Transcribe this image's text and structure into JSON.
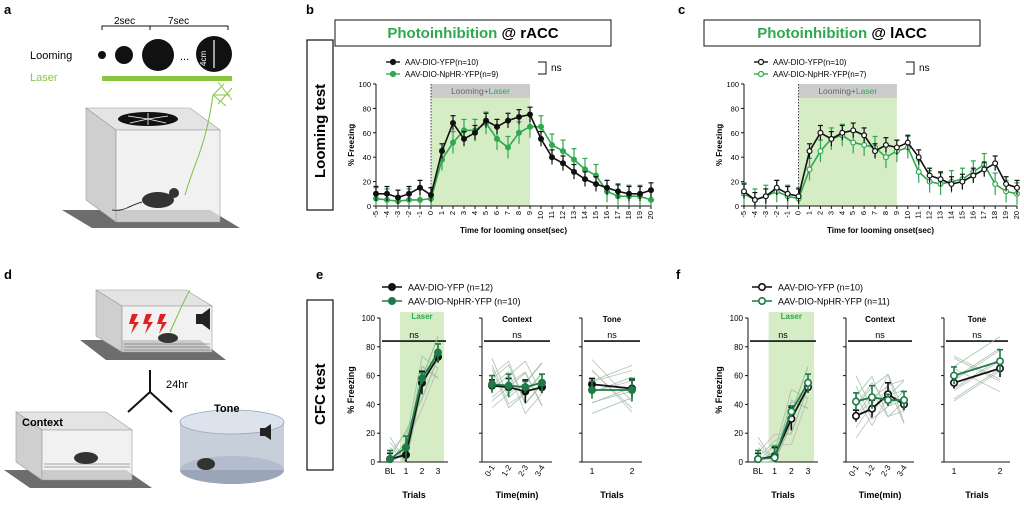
{
  "panels": {
    "a": "a",
    "b": "b",
    "c": "c",
    "d": "d",
    "e": "e",
    "f": "f"
  },
  "schematic_a": {
    "looming_label": "Looming",
    "interval_1": "2sec",
    "interval_2": "7sec",
    "size_label": "4cm",
    "laser_label": "Laser",
    "ellipsis": "...",
    "colors": {
      "laser": "#8cc63f",
      "mouse": "#333333",
      "box": "#d9d9d9"
    }
  },
  "schematic_d": {
    "delay_label": "24hr",
    "context_label": "Context",
    "tone_label": "Tone"
  },
  "row_labels": {
    "looming": "Looming test",
    "cfc": "CFC test"
  },
  "titles": {
    "b": {
      "part1": "Photoinhibition",
      "part2": " @ rACC"
    },
    "c": {
      "part1": "Photoinhibition",
      "part2": " @ lACC"
    }
  },
  "colors": {
    "green": "#2fa84f",
    "dark_green": "#1e7a46",
    "black": "#111111",
    "laser_shade": "#d6ecc4",
    "laser_bar_grey": "#cccccc"
  },
  "chart_data": [
    {
      "id": "b",
      "type": "line",
      "xlabel": "Time for looming onset(sec)",
      "ylabel": "% Freezing",
      "ylim": [
        0,
        100
      ],
      "xlim": [
        -5,
        20
      ],
      "y_ticks": [
        0,
        20,
        40,
        60,
        80,
        100
      ],
      "x_ticks": [
        -5,
        -4,
        -3,
        -2,
        -1,
        0,
        1,
        2,
        3,
        4,
        5,
        6,
        7,
        8,
        9,
        10,
        11,
        12,
        13,
        14,
        15,
        16,
        17,
        18,
        19,
        20
      ],
      "shade": {
        "start": 0,
        "end": 9,
        "label_a": "Looming",
        "label_plus": "+",
        "label_b": "Laser"
      },
      "legend_position": "top-left",
      "significance": "ns",
      "series": [
        {
          "name": "AAV-DIO-YFP(n=10)",
          "marker": "filled-circle",
          "color": "#111111",
          "values": [
            10,
            10,
            7,
            10,
            15,
            9,
            45,
            68,
            55,
            60,
            70,
            65,
            70,
            73,
            75,
            55,
            40,
            35,
            28,
            22,
            18,
            15,
            12,
            10,
            10,
            13
          ]
        },
        {
          "name": "AAV-DIO-NpHR-YFP(n=9)",
          "marker": "filled-circle",
          "color": "#2fa84f",
          "values": [
            6,
            5,
            4,
            5,
            5,
            6,
            38,
            52,
            62,
            62,
            68,
            55,
            48,
            60,
            65,
            65,
            50,
            45,
            38,
            30,
            25,
            12,
            8,
            8,
            8,
            5
          ]
        }
      ]
    },
    {
      "id": "c",
      "type": "line",
      "xlabel": "Time for looming onset(sec)",
      "ylabel": "% Freezing",
      "ylim": [
        0,
        100
      ],
      "xlim": [
        -5,
        20
      ],
      "y_ticks": [
        0,
        20,
        40,
        60,
        80,
        100
      ],
      "x_ticks": [
        -5,
        -4,
        -3,
        -2,
        -1,
        0,
        1,
        2,
        3,
        4,
        5,
        6,
        7,
        8,
        9,
        10,
        11,
        12,
        13,
        14,
        15,
        16,
        17,
        18,
        19,
        20
      ],
      "shade": {
        "start": 0,
        "end": 9,
        "label_a": "Looming",
        "label_plus": "+",
        "label_b": "Laser"
      },
      "legend_position": "top-left",
      "significance": "ns",
      "series": [
        {
          "name": "AAV-DIO-YFP(n=10)",
          "marker": "open-circle",
          "color": "#111111",
          "values": [
            12,
            5,
            8,
            15,
            10,
            8,
            45,
            60,
            55,
            60,
            62,
            58,
            45,
            50,
            48,
            52,
            40,
            25,
            22,
            18,
            20,
            25,
            30,
            35,
            18,
            15
          ]
        },
        {
          "name": "AAV-DIO-NpHR-YFP(n=7)",
          "marker": "open-circle",
          "color": "#2fa84f",
          "values": [
            10,
            5,
            8,
            12,
            8,
            6,
            30,
            45,
            55,
            58,
            52,
            50,
            48,
            40,
            45,
            48,
            28,
            20,
            18,
            20,
            22,
            28,
            34,
            18,
            12,
            10
          ]
        }
      ]
    },
    {
      "id": "e",
      "type": "line",
      "legend_position": "top",
      "series_names": [
        "AAV-DIO-YFP (n=12)",
        "AAV-DIO-NpHR-YFP (n=10)"
      ],
      "ylabel": "% Freezing",
      "ylim": [
        0,
        100
      ],
      "y_ticks": [
        0,
        20,
        40,
        60,
        80,
        100
      ],
      "subplots": [
        {
          "name": "trials",
          "title": "",
          "xlabel": "Trials",
          "categories": [
            "BL",
            "1",
            "2",
            "3"
          ],
          "shade": {
            "from": "1",
            "to": "3",
            "label": "Laser"
          },
          "significance": "ns",
          "series": [
            {
              "values": [
                2,
                5,
                55,
                73
              ]
            },
            {
              "values": [
                2,
                10,
                58,
                76
              ]
            }
          ]
        },
        {
          "name": "context",
          "title": "Context",
          "xlabel": "Time(min)",
          "categories": [
            "0-1",
            "1-2",
            "2-3",
            "3-4"
          ],
          "significance": "ns",
          "series": [
            {
              "values": [
                53,
                52,
                49,
                52
              ]
            },
            {
              "values": [
                54,
                53,
                52,
                55
              ]
            }
          ]
        },
        {
          "name": "tone",
          "title": "Tone",
          "xlabel": "Trials",
          "categories": [
            "1",
            "2"
          ],
          "significance": "ns",
          "series": [
            {
              "values": [
                54,
                51
              ]
            },
            {
              "values": [
                50,
                50
              ]
            }
          ]
        }
      ]
    },
    {
      "id": "f",
      "type": "line",
      "legend_position": "top",
      "series_names": [
        "AAV-DIO-YFP (n=10)",
        "AAV-DIO-NpHR-YFP (n=11)"
      ],
      "ylabel": "% Freezing",
      "ylim": [
        0,
        100
      ],
      "y_ticks": [
        0,
        20,
        40,
        60,
        80,
        100
      ],
      "subplots": [
        {
          "name": "trials",
          "title": "",
          "xlabel": "Trials",
          "categories": [
            "BL",
            "1",
            "2",
            "3"
          ],
          "shade": {
            "from": "1",
            "to": "3",
            "label": "Laser"
          },
          "significance": "ns",
          "series": [
            {
              "values": [
                2,
                4,
                30,
                52
              ]
            },
            {
              "values": [
                2,
                3,
                35,
                55
              ]
            }
          ]
        },
        {
          "name": "context",
          "title": "Context",
          "xlabel": "Time(min)",
          "categories": [
            "0-1",
            "1-2",
            "2-3",
            "3-4"
          ],
          "significance": "ns",
          "series": [
            {
              "values": [
                32,
                37,
                47,
                40
              ]
            },
            {
              "values": [
                42,
                45,
                43,
                43
              ]
            }
          ]
        },
        {
          "name": "tone",
          "title": "Tone",
          "xlabel": "Trials",
          "categories": [
            "1",
            "2"
          ],
          "significance": "ns",
          "series": [
            {
              "values": [
                55,
                65
              ]
            },
            {
              "values": [
                60,
                70
              ]
            }
          ]
        }
      ]
    }
  ]
}
